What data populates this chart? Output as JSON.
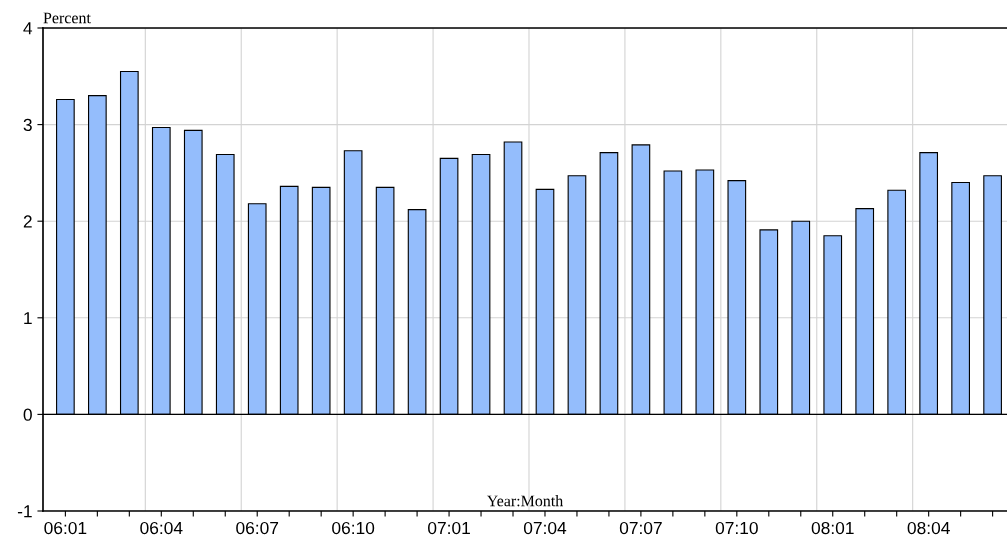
{
  "chart_data": {
    "type": "bar",
    "ylabel": "Percent",
    "xlabel": "Year:Month",
    "categories": [
      "06:01",
      null,
      null,
      "06:04",
      null,
      null,
      "06:07",
      null,
      null,
      "06:10",
      null,
      null,
      "07:01",
      null,
      null,
      "07:04",
      null,
      null,
      "07:07",
      null,
      null,
      "07:10",
      null,
      null,
      "08:01",
      null,
      null,
      "08:04",
      null,
      null
    ],
    "values": [
      3.26,
      3.3,
      3.55,
      2.97,
      2.94,
      2.69,
      2.18,
      2.36,
      2.35,
      2.73,
      2.35,
      2.12,
      2.65,
      2.69,
      2.82,
      2.33,
      2.47,
      2.71,
      2.79,
      2.52,
      2.53,
      2.42,
      1.91,
      2.0,
      1.85,
      2.13,
      2.32,
      2.71,
      2.4,
      2.47
    ],
    "color": "#94bdfc",
    "ylim": [
      -1,
      4
    ],
    "yticks": [
      -1,
      0,
      1,
      2,
      3,
      4
    ],
    "ref_lines": [
      {
        "axis": "y",
        "value": 0,
        "color": "#000000"
      }
    ],
    "grid": true
  }
}
